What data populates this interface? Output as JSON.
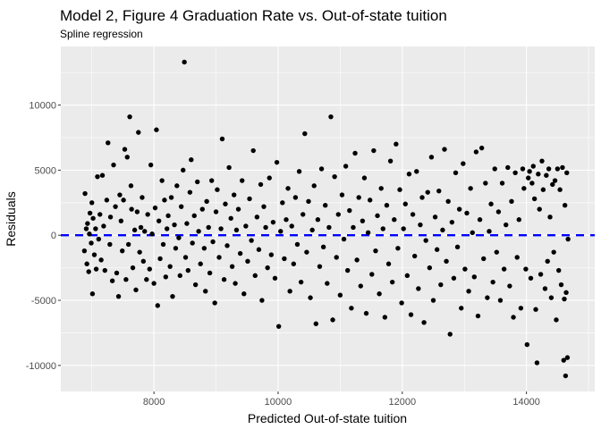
{
  "chart_data": {
    "type": "scatter",
    "title": "Model 2, Figure 4 Graduation Rate vs. Out-of-state tuition",
    "subtitle": "Spline regression",
    "xlabel": "Predicted Out-of-state tuition",
    "ylabel": "Residuals",
    "xlim": [
      6500,
      15100
    ],
    "ylim": [
      -12000,
      14500
    ],
    "xticks": [
      8000,
      10000,
      12000,
      14000
    ],
    "yticks": [
      -10000,
      -5000,
      0,
      5000,
      10000
    ],
    "xticklabels": [
      "8000",
      "10000",
      "12000",
      "14000"
    ],
    "yticklabels": [
      "-10000",
      "-5000",
      "0",
      "5000",
      "10000"
    ],
    "grid": true,
    "legend": "none",
    "colors": {
      "panel": "#ebebeb",
      "grid": "#ffffff",
      "points": "#000000",
      "reference_line": "#0000ff"
    },
    "reference_line": {
      "y": 0,
      "style": "dashed"
    },
    "points": [
      [
        6890,
        3200
      ],
      [
        6880,
        -1200
      ],
      [
        6910,
        500
      ],
      [
        6920,
        -2200
      ],
      [
        6930,
        900
      ],
      [
        6950,
        -2800
      ],
      [
        6960,
        100
      ],
      [
        6970,
        1700
      ],
      [
        6990,
        -600
      ],
      [
        7000,
        2500
      ],
      [
        7010,
        -4500
      ],
      [
        7020,
        1300
      ],
      [
        7040,
        -1500
      ],
      [
        7060,
        500
      ],
      [
        7070,
        -2600
      ],
      [
        7090,
        4500
      ],
      [
        7110,
        -300
      ],
      [
        7130,
        1600
      ],
      [
        7150,
        -1900
      ],
      [
        7170,
        4600
      ],
      [
        7190,
        700
      ],
      [
        7210,
        -2700
      ],
      [
        7240,
        2700
      ],
      [
        7260,
        7100
      ],
      [
        7290,
        -700
      ],
      [
        7300,
        1400
      ],
      [
        7330,
        -3500
      ],
      [
        7350,
        5400
      ],
      [
        7380,
        2200
      ],
      [
        7400,
        -2900
      ],
      [
        7430,
        -4700
      ],
      [
        7450,
        3100
      ],
      [
        7470,
        1100
      ],
      [
        7490,
        -1200
      ],
      [
        7510,
        2700
      ],
      [
        7530,
        6600
      ],
      [
        7550,
        -3400
      ],
      [
        7570,
        6000
      ],
      [
        7590,
        -700
      ],
      [
        7610,
        9100
      ],
      [
        7630,
        3800
      ],
      [
        7640,
        2000
      ],
      [
        7660,
        -2500
      ],
      [
        7690,
        400
      ],
      [
        7710,
        -4200
      ],
      [
        7730,
        1800
      ],
      [
        7750,
        7900
      ],
      [
        7770,
        -1300
      ],
      [
        7790,
        600
      ],
      [
        7810,
        2900
      ],
      [
        7830,
        -2000
      ],
      [
        7850,
        300
      ],
      [
        7880,
        -3400
      ],
      [
        7900,
        1600
      ],
      [
        7930,
        -2600
      ],
      [
        7950,
        5400
      ],
      [
        7970,
        100
      ],
      [
        8000,
        -3700
      ],
      [
        8020,
        2100
      ],
      [
        8040,
        8100
      ],
      [
        8060,
        -5400
      ],
      [
        8080,
        1100
      ],
      [
        8100,
        -1800
      ],
      [
        8130,
        4200
      ],
      [
        8150,
        -700
      ],
      [
        8170,
        2700
      ],
      [
        8190,
        -3200
      ],
      [
        8210,
        500
      ],
      [
        8230,
        1500
      ],
      [
        8260,
        -2400
      ],
      [
        8280,
        2900
      ],
      [
        8300,
        -4700
      ],
      [
        8330,
        800
      ],
      [
        8350,
        -1000
      ],
      [
        8370,
        3800
      ],
      [
        8400,
        -200
      ],
      [
        8420,
        -3100
      ],
      [
        8440,
        2200
      ],
      [
        8470,
        5000
      ],
      [
        8490,
        13300
      ],
      [
        8510,
        -1700
      ],
      [
        8530,
        900
      ],
      [
        8550,
        -2700
      ],
      [
        8580,
        3300
      ],
      [
        8600,
        5800
      ],
      [
        8620,
        -600
      ],
      [
        8650,
        1500
      ],
      [
        8670,
        -3800
      ],
      [
        8700,
        4100
      ],
      [
        8720,
        300
      ],
      [
        8750,
        -2200
      ],
      [
        8780,
        2000
      ],
      [
        8810,
        -1000
      ],
      [
        8830,
        -4300
      ],
      [
        8850,
        2600
      ],
      [
        8880,
        600
      ],
      [
        8900,
        -2900
      ],
      [
        8930,
        4200
      ],
      [
        8950,
        -500
      ],
      [
        8980,
        -5200
      ],
      [
        9000,
        1800
      ],
      [
        9020,
        3500
      ],
      [
        9050,
        -1700
      ],
      [
        9080,
        500
      ],
      [
        9100,
        7400
      ],
      [
        9130,
        -3400
      ],
      [
        9150,
        2400
      ],
      [
        9180,
        -800
      ],
      [
        9210,
        5200
      ],
      [
        9240,
        1300
      ],
      [
        9260,
        -2400
      ],
      [
        9290,
        3100
      ],
      [
        9310,
        -3700
      ],
      [
        9330,
        400
      ],
      [
        9360,
        2000
      ],
      [
        9390,
        -1400
      ],
      [
        9420,
        4200
      ],
      [
        9450,
        -4500
      ],
      [
        9480,
        700
      ],
      [
        9510,
        -2000
      ],
      [
        9540,
        2800
      ],
      [
        9570,
        -400
      ],
      [
        9600,
        6500
      ],
      [
        9630,
        -3100
      ],
      [
        9660,
        1400
      ],
      [
        9690,
        -1100
      ],
      [
        9720,
        3900
      ],
      [
        9740,
        -5000
      ],
      [
        9770,
        2200
      ],
      [
        9800,
        600
      ],
      [
        9830,
        -2500
      ],
      [
        9860,
        4400
      ],
      [
        9890,
        -1500
      ],
      [
        9920,
        1000
      ],
      [
        9950,
        -3300
      ],
      [
        9980,
        5600
      ],
      [
        10010,
        -7000
      ],
      [
        10040,
        300
      ],
      [
        10070,
        2500
      ],
      [
        10100,
        -1800
      ],
      [
        10130,
        1200
      ],
      [
        10160,
        3600
      ],
      [
        10190,
        -4300
      ],
      [
        10220,
        700
      ],
      [
        10250,
        -2200
      ],
      [
        10280,
        2900
      ],
      [
        10310,
        -700
      ],
      [
        10340,
        4900
      ],
      [
        10370,
        -3600
      ],
      [
        10400,
        1600
      ],
      [
        10430,
        7800
      ],
      [
        10460,
        -1300
      ],
      [
        10490,
        2600
      ],
      [
        10520,
        -4800
      ],
      [
        10550,
        400
      ],
      [
        10580,
        3800
      ],
      [
        10610,
        -6800
      ],
      [
        10640,
        1200
      ],
      [
        10670,
        -2400
      ],
      [
        10700,
        5100
      ],
      [
        10730,
        -900
      ],
      [
        10760,
        2300
      ],
      [
        10790,
        -3700
      ],
      [
        10820,
        600
      ],
      [
        10850,
        9100
      ],
      [
        10880,
        -6500
      ],
      [
        10910,
        4500
      ],
      [
        10940,
        -1700
      ],
      [
        10970,
        1600
      ],
      [
        11000,
        -4600
      ],
      [
        11030,
        3100
      ],
      [
        11060,
        -300
      ],
      [
        11090,
        5300
      ],
      [
        11120,
        -2700
      ],
      [
        11150,
        1900
      ],
      [
        11180,
        -5600
      ],
      [
        11210,
        600
      ],
      [
        11240,
        6300
      ],
      [
        11270,
        -1900
      ],
      [
        11300,
        2900
      ],
      [
        11330,
        -3900
      ],
      [
        11360,
        1100
      ],
      [
        11390,
        4400
      ],
      [
        11420,
        -6000
      ],
      [
        11450,
        200
      ],
      [
        11480,
        2700
      ],
      [
        11510,
        -3000
      ],
      [
        11540,
        6500
      ],
      [
        11570,
        -1200
      ],
      [
        11600,
        1500
      ],
      [
        11630,
        -4500
      ],
      [
        11660,
        3600
      ],
      [
        11690,
        500
      ],
      [
        11720,
        -6300
      ],
      [
        11750,
        2300
      ],
      [
        11780,
        -2200
      ],
      [
        11810,
        5700
      ],
      [
        11840,
        -3600
      ],
      [
        11870,
        1200
      ],
      [
        11900,
        7000
      ],
      [
        11930,
        -1000
      ],
      [
        11960,
        3500
      ],
      [
        11990,
        -5200
      ],
      [
        12020,
        500
      ],
      [
        12050,
        2400
      ],
      [
        12080,
        -3100
      ],
      [
        12110,
        4700
      ],
      [
        12140,
        -6100
      ],
      [
        12170,
        1600
      ],
      [
        12200,
        -1600
      ],
      [
        12230,
        4900
      ],
      [
        12260,
        -4100
      ],
      [
        12290,
        800
      ],
      [
        12320,
        2900
      ],
      [
        12350,
        -6700
      ],
      [
        12380,
        -400
      ],
      [
        12410,
        3300
      ],
      [
        12440,
        -2500
      ],
      [
        12470,
        6000
      ],
      [
        12500,
        -5000
      ],
      [
        12530,
        1400
      ],
      [
        12560,
        -1100
      ],
      [
        12590,
        3400
      ],
      [
        12620,
        -3800
      ],
      [
        12650,
        400
      ],
      [
        12680,
        6600
      ],
      [
        12710,
        -2000
      ],
      [
        12740,
        2600
      ],
      [
        12770,
        -7600
      ],
      [
        12800,
        1000
      ],
      [
        12830,
        -3300
      ],
      [
        12860,
        4800
      ],
      [
        12890,
        -900
      ],
      [
        12920,
        2000
      ],
      [
        12950,
        -5600
      ],
      [
        12980,
        5500
      ],
      [
        13010,
        -2600
      ],
      [
        13040,
        1700
      ],
      [
        13070,
        -4300
      ],
      [
        13100,
        3600
      ],
      [
        13130,
        200
      ],
      [
        13160,
        -3200
      ],
      [
        13190,
        6400
      ],
      [
        13220,
        -6200
      ],
      [
        13250,
        1200
      ],
      [
        13280,
        6700
      ],
      [
        13310,
        -1800
      ],
      [
        13340,
        4000
      ],
      [
        13370,
        -4800
      ],
      [
        13400,
        300
      ],
      [
        13430,
        2400
      ],
      [
        13460,
        -3600
      ],
      [
        13490,
        5100
      ],
      [
        13520,
        -1300
      ],
      [
        13550,
        1800
      ],
      [
        13580,
        -5000
      ],
      [
        13610,
        4000
      ],
      [
        13640,
        -2600
      ],
      [
        13670,
        800
      ],
      [
        13700,
        5200
      ],
      [
        13730,
        -3900
      ],
      [
        13760,
        2600
      ],
      [
        13790,
        -6300
      ],
      [
        13820,
        4800
      ],
      [
        13850,
        -1700
      ],
      [
        13880,
        1200
      ],
      [
        13910,
        -5600
      ],
      [
        13940,
        5100
      ],
      [
        13960,
        3600
      ],
      [
        13990,
        -2600
      ],
      [
        14010,
        -8400
      ],
      [
        14030,
        4400
      ],
      [
        14050,
        4900
      ],
      [
        14070,
        -3300
      ],
      [
        14090,
        4000
      ],
      [
        14110,
        5300
      ],
      [
        14130,
        2800
      ],
      [
        14150,
        -5700
      ],
      [
        14170,
        -9800
      ],
      [
        14190,
        4700
      ],
      [
        14210,
        2000
      ],
      [
        14230,
        -3000
      ],
      [
        14250,
        5700
      ],
      [
        14270,
        3500
      ],
      [
        14300,
        -4100
      ],
      [
        14320,
        4600
      ],
      [
        14340,
        -2000
      ],
      [
        14360,
        5100
      ],
      [
        14380,
        1400
      ],
      [
        14400,
        -4800
      ],
      [
        14420,
        3900
      ],
      [
        14440,
        -1300
      ],
      [
        14460,
        4200
      ],
      [
        14480,
        -6500
      ],
      [
        14500,
        5100
      ],
      [
        14520,
        -2700
      ],
      [
        14540,
        3500
      ],
      [
        14560,
        -3800
      ],
      [
        14580,
        5200
      ],
      [
        14600,
        -9600
      ],
      [
        14610,
        -4900
      ],
      [
        14620,
        2300
      ],
      [
        14630,
        -10800
      ],
      [
        14640,
        -4400
      ],
      [
        14650,
        4800
      ],
      [
        14660,
        -9400
      ],
      [
        14670,
        -300
      ]
    ]
  }
}
